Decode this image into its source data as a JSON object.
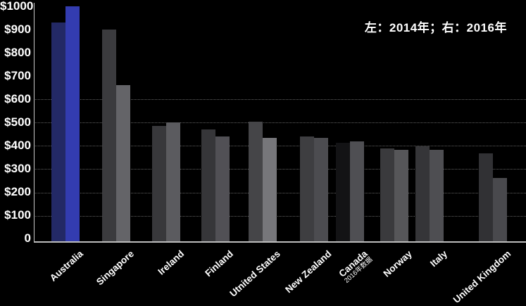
{
  "chart_data": {
    "type": "bar",
    "title": "",
    "annotation": "左：2014年；右：2016年",
    "categories": [
      "Australia",
      "Singapore",
      "Ireland",
      "Finland",
      "Utnited States",
      "New Zealand",
      "Canada",
      "Norway",
      "Italy",
      "United Kingdom"
    ],
    "category_note": {
      "index": 6,
      "text": "2016年数据"
    },
    "series": [
      {
        "name": "2014",
        "values": [
          930,
          900,
          490,
          475,
          510,
          445,
          420,
          395,
          405,
          375
        ],
        "colors": [
          "#232966",
          "#3b3b3e",
          "#38383b",
          "#363639",
          "#454548",
          "#3e3e41",
          "#131315",
          "#3a3a3d",
          "#353538",
          "#313134"
        ]
      },
      {
        "name": "2016",
        "values": [
          1000,
          665,
          505,
          445,
          440,
          440,
          425,
          390,
          390,
          270
        ],
        "colors": [
          "#333cb0",
          "#646468",
          "#5b5b5f",
          "#515055",
          "#76767a",
          "#4c4c50",
          "#4f4f53",
          "#565659",
          "#4e4e52",
          "#49494d"
        ]
      }
    ],
    "ylim": [
      0,
      1000
    ],
    "yticks": [
      {
        "value": 1000,
        "label": "$1000"
      },
      {
        "value": 900,
        "label": "$900"
      },
      {
        "value": 800,
        "label": "$800"
      },
      {
        "value": 700,
        "label": "$700"
      },
      {
        "value": 600,
        "label": "$600"
      },
      {
        "value": 500,
        "label": "$500"
      },
      {
        "value": 400,
        "label": "$400"
      },
      {
        "value": 300,
        "label": "$300"
      },
      {
        "value": 200,
        "label": "$200"
      },
      {
        "value": 100,
        "label": "$100"
      },
      {
        "value": 0,
        "label": "0"
      }
    ],
    "gridlines_at": [
      600,
      500,
      400,
      300,
      200,
      100
    ],
    "grid_style": "dotted",
    "legend_position": "top-right",
    "background_color": "#000000",
    "axis_color": "#c9c9c9",
    "text_color": "#ffffff"
  }
}
